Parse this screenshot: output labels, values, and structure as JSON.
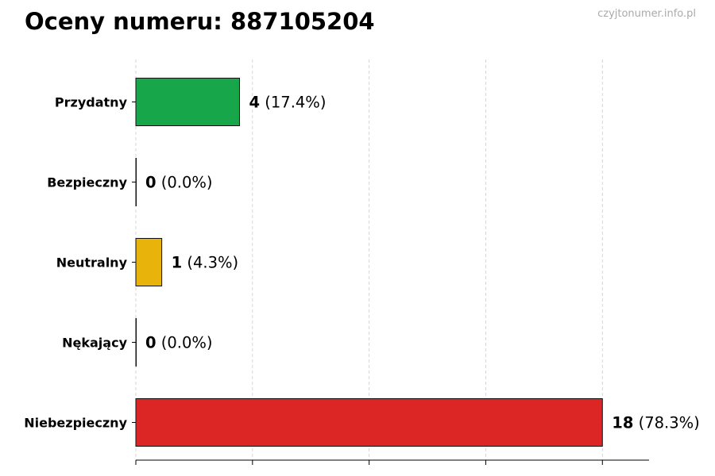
{
  "watermark": "czyjtonumer.info.pl",
  "chart_data": {
    "type": "bar",
    "orientation": "horizontal",
    "title": "Oceny numeru: 887105204",
    "xlabel": "",
    "ylabel": "",
    "categories": [
      "Przydatny",
      "Bezpieczny",
      "Neutralny",
      "Nękający",
      "Niebezpieczny"
    ],
    "values": [
      4,
      0,
      1,
      0,
      18
    ],
    "value_labels": [
      "4",
      "0",
      "1",
      "0",
      "18"
    ],
    "percent_labels": [
      "(17.4%)",
      "(0.0%)",
      "(4.3%)",
      "(0.0%)",
      "(78.3%)"
    ],
    "colors": [
      "#18a64a",
      "#9ca3af",
      "#e8b40c",
      "#7c3aed",
      "#dc2626"
    ],
    "xlim": [
      0,
      19.8
    ],
    "xticks": [
      0,
      4.5,
      9,
      13.5,
      18
    ],
    "grid": "vertical dashed",
    "legend": "none"
  }
}
